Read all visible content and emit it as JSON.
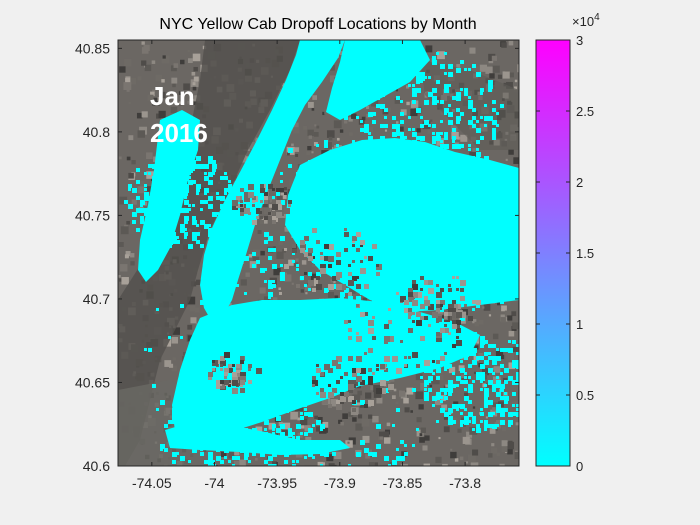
{
  "chart_data": {
    "type": "heatmap",
    "title": "NYC Yellow Cab Dropoff Locations by Month",
    "xlabel": "",
    "ylabel": "",
    "xlim": [
      -74.077,
      -73.757
    ],
    "ylim": [
      40.6,
      40.855
    ],
    "x_ticks": [
      -74.05,
      -74.0,
      -73.95,
      -73.9,
      -73.85,
      -73.8
    ],
    "x_tick_labels": [
      "-74.05",
      "-74",
      "-73.95",
      "-73.9",
      "-73.85",
      "-73.8"
    ],
    "y_ticks": [
      40.6,
      40.65,
      40.7,
      40.75,
      40.8,
      40.85
    ],
    "y_tick_labels": [
      "40.6",
      "40.65",
      "40.7",
      "40.75",
      "40.8",
      "40.85"
    ],
    "annotation_lines": [
      "Jan",
      "2016"
    ],
    "colorbar": {
      "min": 0,
      "max": 30000,
      "exponent_label": "×10",
      "exponent": "4",
      "ticks": [
        0,
        0.5,
        1,
        1.5,
        2,
        2.5,
        3
      ],
      "tick_labels": [
        "0",
        "0.5",
        "1",
        "1.5",
        "2",
        "2.5",
        "3"
      ],
      "color_low": "#00ffff",
      "color_high": "#ff00ff"
    },
    "background": "satellite-imagery",
    "dense_color": "#00ffff",
    "grid": false
  }
}
